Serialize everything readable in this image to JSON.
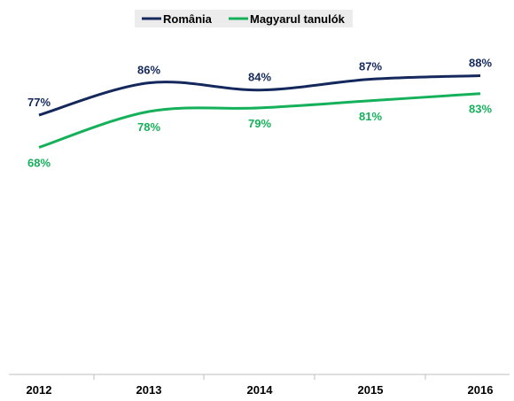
{
  "chart_data": {
    "type": "line",
    "categories": [
      "2012",
      "2013",
      "2014",
      "2015",
      "2016"
    ],
    "series": [
      {
        "name": "România",
        "values": [
          77,
          86,
          84,
          87,
          88
        ],
        "labels": [
          "77%",
          "86%",
          "84%",
          "87%",
          "88%"
        ],
        "color": "#14285c"
      },
      {
        "name": "Magyarul tanulók",
        "values": [
          68,
          78,
          79,
          81,
          83
        ],
        "labels": [
          "68%",
          "78%",
          "79%",
          "81%",
          "83%"
        ],
        "color": "#15b05a"
      }
    ],
    "legend_position": "top",
    "grid": false,
    "axis_color": "#bfbfbf"
  }
}
